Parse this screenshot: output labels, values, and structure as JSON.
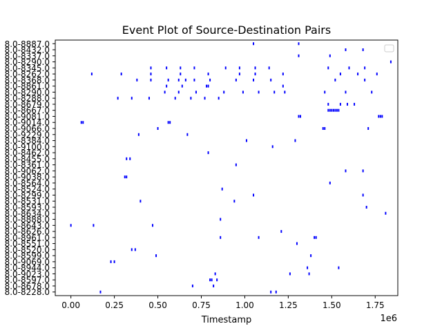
{
  "chart_data": {
    "type": "scatter",
    "title": "Event Plot of Source-Destination Pairs",
    "xlabel": "Timestamp",
    "ylabel": "",
    "x_offset_label": "1e6",
    "x_scale": 1000000,
    "xlim": [
      -0.09,
      1.88
    ],
    "x_ticks": [
      {
        "value": 0.0,
        "label": "0.00"
      },
      {
        "value": 0.25,
        "label": "0.25"
      },
      {
        "value": 0.5,
        "label": "0.50"
      },
      {
        "value": 0.75,
        "label": "0.75"
      },
      {
        "value": 1.0,
        "label": "1.00"
      },
      {
        "value": 1.25,
        "label": "1.25"
      },
      {
        "value": 1.5,
        "label": "1.50"
      },
      {
        "value": 1.75,
        "label": "1.75"
      }
    ],
    "ylim": [
      -0.6,
      41.6
    ],
    "y_ticks": [
      {
        "value": 0,
        "label": "8.0-8228.0"
      },
      {
        "value": 1,
        "label": "8.0-8678.0"
      },
      {
        "value": 2,
        "label": "8.0-8597.0"
      },
      {
        "value": 3,
        "label": "8.0-9023.0"
      },
      {
        "value": 4,
        "label": "8.0-8944.0"
      },
      {
        "value": 5,
        "label": "8.0-9069.0"
      },
      {
        "value": 6,
        "label": "8.0-8599.0"
      },
      {
        "value": 7,
        "label": "8.0-8520.0"
      },
      {
        "value": 8,
        "label": "8.0-8551.0"
      },
      {
        "value": 9,
        "label": "8.0-8961.0"
      },
      {
        "value": 10,
        "label": "8.0-8626.0"
      },
      {
        "value": 11,
        "label": "8.0-8643.0"
      },
      {
        "value": 12,
        "label": "8.0-8888.0"
      },
      {
        "value": 13,
        "label": "8.0-8634.0"
      },
      {
        "value": 14,
        "label": "8.0-8593.0"
      },
      {
        "value": 15,
        "label": "8.0-8531.0"
      },
      {
        "value": 16,
        "label": "8.0-8299.0"
      },
      {
        "value": 17,
        "label": "8.0-8524.0"
      },
      {
        "value": 18,
        "label": "8.0-8564.0"
      },
      {
        "value": 19,
        "label": "8.0-9038.0"
      },
      {
        "value": 20,
        "label": "8.0-9062.0"
      },
      {
        "value": 21,
        "label": "8.0-8361.0"
      },
      {
        "value": 22,
        "label": "8.0-8455.0"
      },
      {
        "value": 23,
        "label": "8.0-8462.0"
      },
      {
        "value": 24,
        "label": "8.0-9100.0"
      },
      {
        "value": 25,
        "label": "8.0-8384.0"
      },
      {
        "value": 26,
        "label": "8.0-9229.0"
      },
      {
        "value": 27,
        "label": "8.0-9066.0"
      },
      {
        "value": 28,
        "label": "8.0-9014.0"
      },
      {
        "value": 29,
        "label": "8.0-9081.0"
      },
      {
        "value": 30,
        "label": "8.0-8667.0"
      },
      {
        "value": 31,
        "label": "8.0-8679.0"
      },
      {
        "value": 32,
        "label": "8.0-8288.0"
      },
      {
        "value": 33,
        "label": "8.0-8290.0"
      },
      {
        "value": 34,
        "label": "8.0-8861.0"
      },
      {
        "value": 35,
        "label": "8.0-8368.0"
      },
      {
        "value": 36,
        "label": "8.0-8262.0"
      },
      {
        "value": 37,
        "label": "8.0-8345.0"
      },
      {
        "value": 38,
        "label": "8.0-8290.0"
      },
      {
        "value": 39,
        "label": "8.0-8337.0"
      },
      {
        "value": 40,
        "label": "8.0-8432.0"
      },
      {
        "value": 41,
        "label": "8.0-8887.0"
      }
    ],
    "legend": {
      "placement": "top-right",
      "entries": []
    },
    "grid": false,
    "marker_color": "#0000ff",
    "series": [
      {
        "y": 0,
        "x": [
          0.17,
          1.15,
          1.18
        ]
      },
      {
        "y": 1,
        "x": [
          0.7,
          0.82
        ]
      },
      {
        "y": 2,
        "x": [
          0.8,
          0.81,
          0.84
        ]
      },
      {
        "y": 3,
        "x": [
          0.83,
          1.26,
          1.37
        ]
      },
      {
        "y": 4,
        "x": [
          1.36,
          1.54
        ]
      },
      {
        "y": 5,
        "x": [
          0.23,
          0.25
        ]
      },
      {
        "y": 6,
        "x": [
          0.49,
          1.38
        ]
      },
      {
        "y": 7,
        "x": [
          0.35,
          0.37
        ]
      },
      {
        "y": 8,
        "x": [
          1.3
        ]
      },
      {
        "y": 9,
        "x": [
          0.86,
          1.08,
          1.4,
          1.41
        ]
      },
      {
        "y": 10,
        "x": [
          1.21
        ]
      },
      {
        "y": 11,
        "x": [
          0.0,
          0.13,
          0.47
        ]
      },
      {
        "y": 12,
        "x": [
          0.86
        ]
      },
      {
        "y": 13,
        "x": [
          1.81
        ]
      },
      {
        "y": 14,
        "x": [
          1.7
        ]
      },
      {
        "y": 15,
        "x": [
          0.4,
          0.94
        ]
      },
      {
        "y": 16,
        "x": [
          1.05,
          1.68
        ]
      },
      {
        "y": 17,
        "x": [
          0.87
        ]
      },
      {
        "y": 18,
        "x": [
          1.49
        ]
      },
      {
        "y": 19,
        "x": [
          0.31,
          0.32
        ]
      },
      {
        "y": 20,
        "x": [
          1.58,
          1.68
        ]
      },
      {
        "y": 21,
        "x": [
          0.95
        ]
      },
      {
        "y": 22,
        "x": [
          0.32,
          0.34
        ]
      },
      {
        "y": 23,
        "x": [
          0.79
        ]
      },
      {
        "y": 24,
        "x": [
          1.16
        ]
      },
      {
        "y": 25,
        "x": [
          1.01,
          1.29
        ]
      },
      {
        "y": 26,
        "x": [
          0.39,
          0.67
        ]
      },
      {
        "y": 27,
        "x": [
          0.5,
          1.45,
          1.46,
          1.71
        ]
      },
      {
        "y": 28,
        "x": [
          0.06,
          0.07,
          0.56,
          0.57
        ]
      },
      {
        "y": 29,
        "x": [
          1.31,
          1.32,
          1.77,
          1.78,
          1.79
        ]
      },
      {
        "y": 30,
        "x": [
          1.48,
          1.49,
          1.5,
          1.51,
          1.52,
          1.53,
          1.54
        ]
      },
      {
        "y": 31,
        "x": [
          1.48,
          1.55,
          1.59,
          1.63
        ]
      },
      {
        "y": 32,
        "x": [
          0.27,
          0.35,
          0.45,
          0.6,
          0.69,
          0.77,
          0.85
        ]
      },
      {
        "y": 33,
        "x": [
          0.54,
          0.62,
          0.72,
          0.88,
          0.99,
          1.08,
          1.17,
          1.23,
          1.46,
          1.58,
          1.73
        ]
      },
      {
        "y": 34,
        "x": [
          0.55,
          0.64,
          0.78,
          0.79,
          1.22
        ]
      },
      {
        "y": 35,
        "x": [
          0.38,
          0.46,
          0.56,
          0.62,
          0.66,
          0.71,
          0.8,
          0.95,
          1.05,
          1.15,
          1.52,
          1.69
        ]
      },
      {
        "y": 36,
        "x": [
          0.12,
          0.29,
          0.46,
          0.63,
          0.79,
          0.97,
          1.06,
          1.22,
          1.55,
          1.65,
          1.76
        ]
      },
      {
        "y": 37,
        "x": [
          0.46,
          0.55,
          0.63,
          0.71,
          0.89,
          0.97,
          1.06,
          1.14,
          1.48,
          1.6,
          1.69
        ]
      },
      {
        "y": 38,
        "x": [
          1.84
        ]
      },
      {
        "y": 39,
        "x": [
          1.31,
          1.49
        ]
      },
      {
        "y": 40,
        "x": [
          1.58,
          1.68,
          1.83
        ]
      },
      {
        "y": 41,
        "x": [
          1.05,
          1.31
        ]
      }
    ]
  }
}
